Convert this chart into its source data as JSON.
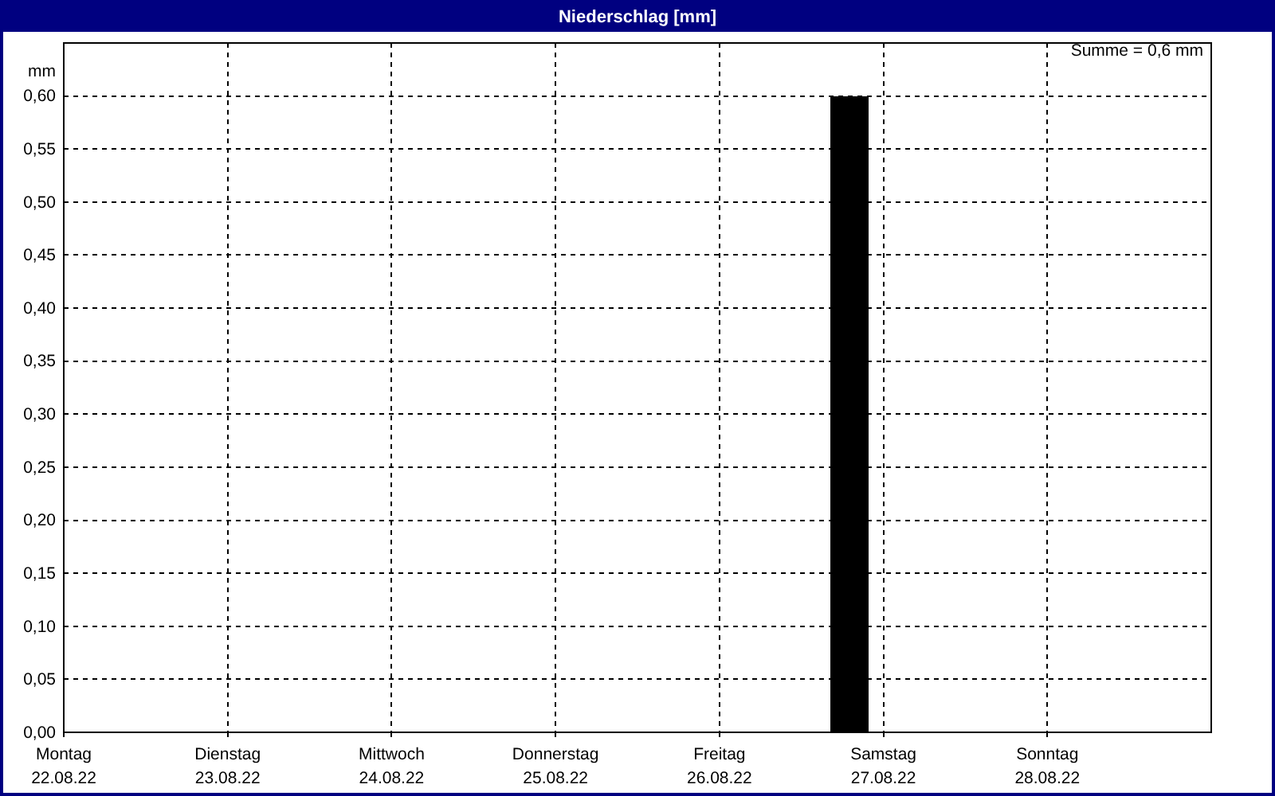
{
  "chart_data": {
    "type": "bar",
    "title": "Niederschlag [mm]",
    "ylabel": "mm",
    "annotations": [
      "Summe = 0,6 mm"
    ],
    "x": [
      "--08-26T19:00"
    ],
    "values": [
      0.6
    ],
    "color": "#000000",
    "xlim": [
      "--08-22",
      "--08-29"
    ],
    "xticks": [
      {
        "value": "--08-22",
        "label": "Montag\n22.08.22"
      },
      {
        "value": "--08-23",
        "label": "Dienstag\n23.08.22"
      },
      {
        "value": "--08-24",
        "label": "Mittwoch\n24.08.22"
      },
      {
        "value": "--08-25",
        "label": "Donnerstag\n25.08.22"
      },
      {
        "value": "--08-26",
        "label": "Freitag\n26.08.22"
      },
      {
        "value": "--08-27",
        "label": "Samstag\n27.08.22"
      },
      {
        "value": "--08-28",
        "label": "Sonntag\n28.08.22"
      }
    ],
    "ylim": [
      0,
      0.65
    ],
    "yticks": [
      {
        "value": 0,
        "label": "0,00"
      },
      {
        "value": 0.05,
        "label": "0,05"
      },
      {
        "value": 0.1,
        "label": "0,10"
      },
      {
        "value": 0.15,
        "label": "0,15"
      },
      {
        "value": 0.2,
        "label": "0,20"
      },
      {
        "value": 0.25,
        "label": "0,25"
      },
      {
        "value": 0.3,
        "label": "0,30"
      },
      {
        "value": 0.35,
        "label": "0,35"
      },
      {
        "value": 0.4,
        "label": "0,40"
      },
      {
        "value": 0.45,
        "label": "0,45"
      },
      {
        "value": 0.5,
        "label": "0,50"
      },
      {
        "value": 0.55,
        "label": "0,55"
      },
      {
        "value": 0.6,
        "label": "0,60"
      }
    ],
    "grid": true
  }
}
